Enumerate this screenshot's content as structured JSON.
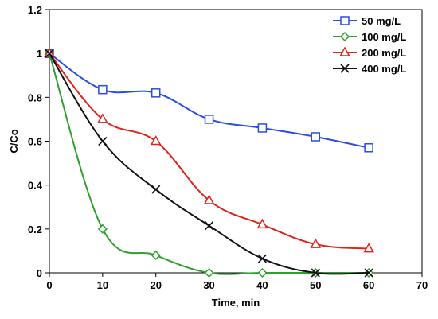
{
  "chart_data": {
    "type": "line",
    "title": "",
    "xlabel": "Time, min",
    "ylabel": "C/Co",
    "xlim": [
      0,
      70
    ],
    "ylim": [
      0,
      1.2
    ],
    "xticks": [
      "0",
      "10",
      "20",
      "30",
      "40",
      "50",
      "60",
      "70"
    ],
    "yticks": [
      "0",
      "0.2",
      "0.4",
      "0.6",
      "0.8",
      "1",
      "1.2"
    ],
    "x": [
      0,
      10,
      20,
      30,
      40,
      50,
      60
    ],
    "grid": false,
    "legend_position": "top-right",
    "series": [
      {
        "name": "50 mg/L",
        "color": "#2b4ce0",
        "marker": "square",
        "values": [
          1.0,
          0.835,
          0.82,
          0.7,
          0.66,
          0.62,
          0.57
        ]
      },
      {
        "name": "100 mg/L",
        "color": "#2da02d",
        "marker": "diamond",
        "values": [
          1.0,
          0.2,
          0.08,
          0.0,
          0.0,
          0.0,
          0.0
        ]
      },
      {
        "name": "200 mg/L",
        "color": "#e0231a",
        "marker": "triangle",
        "values": [
          1.0,
          0.7,
          0.6,
          0.33,
          0.22,
          0.13,
          0.11
        ]
      },
      {
        "name": "400 mg/L",
        "color": "#111111",
        "marker": "x",
        "values": [
          1.0,
          0.6,
          0.38,
          0.215,
          0.065,
          0.0,
          0.0
        ]
      }
    ]
  }
}
